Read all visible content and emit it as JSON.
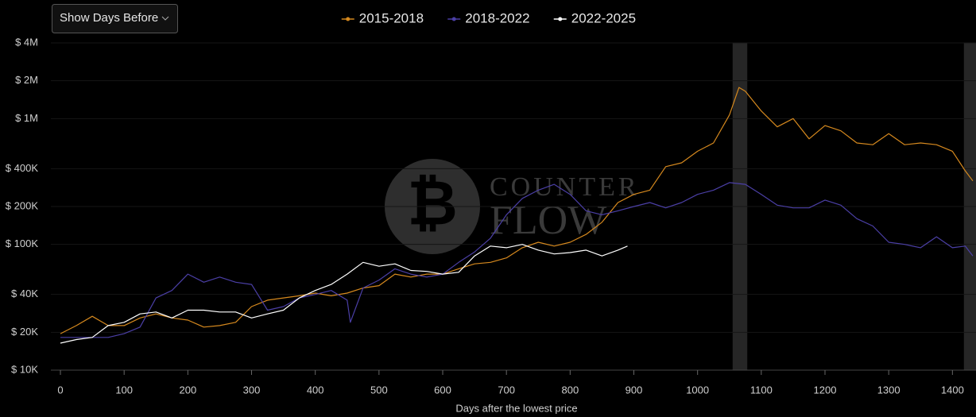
{
  "chart_data": {
    "type": "line",
    "button": "Show Days Before",
    "x_label": "Days after the lowest price",
    "watermark": [
      "COUNTER",
      "FLOW"
    ],
    "log_y": true,
    "grid": true,
    "legend_position": "top",
    "xlim": [
      -15,
      1437
    ],
    "xticks": [
      0,
      100,
      200,
      300,
      400,
      500,
      600,
      700,
      800,
      900,
      1000,
      1100,
      1200,
      1300,
      1400
    ],
    "ylim": [
      10000,
      4000000
    ],
    "yticks": [
      {
        "value": 10000,
        "label": "$ 10K"
      },
      {
        "value": 20000,
        "label": "$ 20K"
      },
      {
        "value": 40000,
        "label": "$ 40K"
      },
      {
        "value": 100000,
        "label": "$ 100K"
      },
      {
        "value": 200000,
        "label": "$ 200K"
      },
      {
        "value": 400000,
        "label": "$ 400K"
      },
      {
        "value": 1000000,
        "label": "$ 1M"
      },
      {
        "value": 2000000,
        "label": "$ 2M"
      },
      {
        "value": 4000000,
        "label": "$ 4M"
      }
    ],
    "shaded_ranges": [
      [
        1055,
        1078
      ],
      [
        1418,
        1437
      ]
    ],
    "series": [
      {
        "name": "2015-2018",
        "color": "#d6891e",
        "x": [
          0,
          25,
          50,
          75,
          100,
          125,
          150,
          175,
          200,
          225,
          250,
          275,
          300,
          325,
          350,
          375,
          400,
          425,
          450,
          475,
          500,
          525,
          550,
          575,
          600,
          625,
          650,
          675,
          700,
          725,
          750,
          775,
          800,
          825,
          850,
          875,
          900,
          925,
          950,
          975,
          1000,
          1025,
          1050,
          1065,
          1075,
          1100,
          1125,
          1150,
          1175,
          1200,
          1225,
          1250,
          1275,
          1300,
          1325,
          1350,
          1375,
          1400,
          1420,
          1432
        ],
        "values": [
          19500,
          22600,
          26800,
          22600,
          22600,
          26000,
          28000,
          26000,
          25000,
          22000,
          22600,
          24000,
          32000,
          36000,
          37500,
          39000,
          41000,
          39000,
          41000,
          45000,
          47000,
          58000,
          55000,
          58000,
          58000,
          64000,
          70000,
          72000,
          78000,
          94000,
          104000,
          97000,
          104000,
          120000,
          150000,
          215000,
          250000,
          270000,
          415000,
          445000,
          550000,
          640000,
          1070000,
          1770000,
          1650000,
          1150000,
          860000,
          1000000,
          690000,
          880000,
          800000,
          640000,
          620000,
          760000,
          620000,
          640000,
          620000,
          550000,
          385000,
          320000
        ]
      },
      {
        "name": "2018-2022",
        "color": "#4b3fa6",
        "x": [
          0,
          25,
          50,
          75,
          100,
          125,
          150,
          175,
          200,
          225,
          250,
          275,
          300,
          325,
          350,
          375,
          400,
          425,
          450,
          455,
          475,
          500,
          525,
          550,
          575,
          600,
          625,
          650,
          675,
          700,
          725,
          750,
          775,
          800,
          825,
          850,
          875,
          900,
          925,
          950,
          975,
          1000,
          1025,
          1050,
          1075,
          1100,
          1125,
          1150,
          1175,
          1200,
          1225,
          1250,
          1275,
          1300,
          1325,
          1350,
          1375,
          1400,
          1420,
          1432
        ],
        "values": [
          18200,
          18200,
          18200,
          18200,
          19500,
          22000,
          37500,
          43000,
          58000,
          50000,
          55000,
          50000,
          48000,
          30000,
          32000,
          37500,
          40000,
          43000,
          36000,
          24000,
          45000,
          52000,
          64000,
          58000,
          55000,
          58000,
          72000,
          87000,
          112000,
          172000,
          232000,
          270000,
          300000,
          250000,
          185000,
          172000,
          185000,
          200000,
          215000,
          195000,
          215000,
          250000,
          270000,
          310000,
          300000,
          250000,
          205000,
          195000,
          195000,
          225000,
          205000,
          160000,
          140000,
          104000,
          100000,
          94000,
          115000,
          94000,
          97000,
          81000
        ]
      },
      {
        "name": "2022-2025",
        "color": "#ffffff",
        "x": [
          0,
          25,
          50,
          75,
          100,
          125,
          150,
          175,
          200,
          225,
          250,
          275,
          300,
          325,
          350,
          375,
          400,
          425,
          450,
          475,
          500,
          525,
          550,
          575,
          600,
          625,
          650,
          675,
          700,
          725,
          750,
          775,
          800,
          825,
          850,
          875,
          890
        ],
        "values": [
          16400,
          17500,
          18200,
          22600,
          24000,
          28000,
          29000,
          26000,
          30000,
          30000,
          29000,
          29000,
          26000,
          28000,
          30000,
          37500,
          43000,
          48000,
          58000,
          72000,
          67000,
          70000,
          62000,
          61000,
          58000,
          60000,
          81000,
          97000,
          94000,
          100000,
          90000,
          84000,
          86000,
          90000,
          81000,
          90000,
          97000
        ]
      }
    ]
  }
}
